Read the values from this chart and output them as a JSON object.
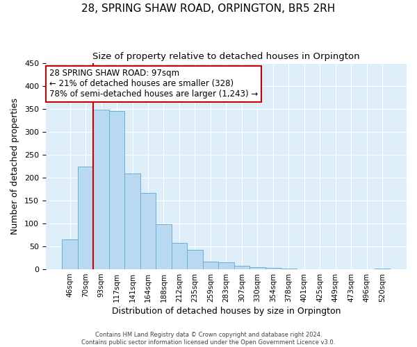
{
  "title": "28, SPRING SHAW ROAD, ORPINGTON, BR5 2RH",
  "subtitle": "Size of property relative to detached houses in Orpington",
  "xlabel": "Distribution of detached houses by size in Orpington",
  "ylabel": "Number of detached properties",
  "bar_labels": [
    "46sqm",
    "70sqm",
    "93sqm",
    "117sqm",
    "141sqm",
    "164sqm",
    "188sqm",
    "212sqm",
    "235sqm",
    "259sqm",
    "283sqm",
    "307sqm",
    "330sqm",
    "354sqm",
    "378sqm",
    "401sqm",
    "425sqm",
    "449sqm",
    "473sqm",
    "496sqm",
    "520sqm"
  ],
  "bar_values": [
    65,
    224,
    348,
    345,
    209,
    166,
    98,
    57,
    43,
    16,
    15,
    7,
    5,
    3,
    1,
    0,
    0,
    0,
    0,
    0,
    2
  ],
  "bar_color": "#b8d9f0",
  "bar_edge_color": "#6aafd6",
  "property_line_color": "#cc0000",
  "annotation_title": "28 SPRING SHAW ROAD: 97sqm",
  "annotation_line1": "← 21% of detached houses are smaller (328)",
  "annotation_line2": "78% of semi-detached houses are larger (1,243) →",
  "annotation_box_color": "#ffffff",
  "annotation_box_edge": "#cc0000",
  "ylim": [
    0,
    450
  ],
  "yticks": [
    0,
    50,
    100,
    150,
    200,
    250,
    300,
    350,
    400,
    450
  ],
  "footer1": "Contains HM Land Registry data © Crown copyright and database right 2024.",
  "footer2": "Contains public sector information licensed under the Open Government Licence v3.0.",
  "bg_color": "#ddeef8",
  "fig_bg_color": "#ffffff",
  "grid_color": "#ffffff",
  "title_fontsize": 11,
  "subtitle_fontsize": 9.5
}
